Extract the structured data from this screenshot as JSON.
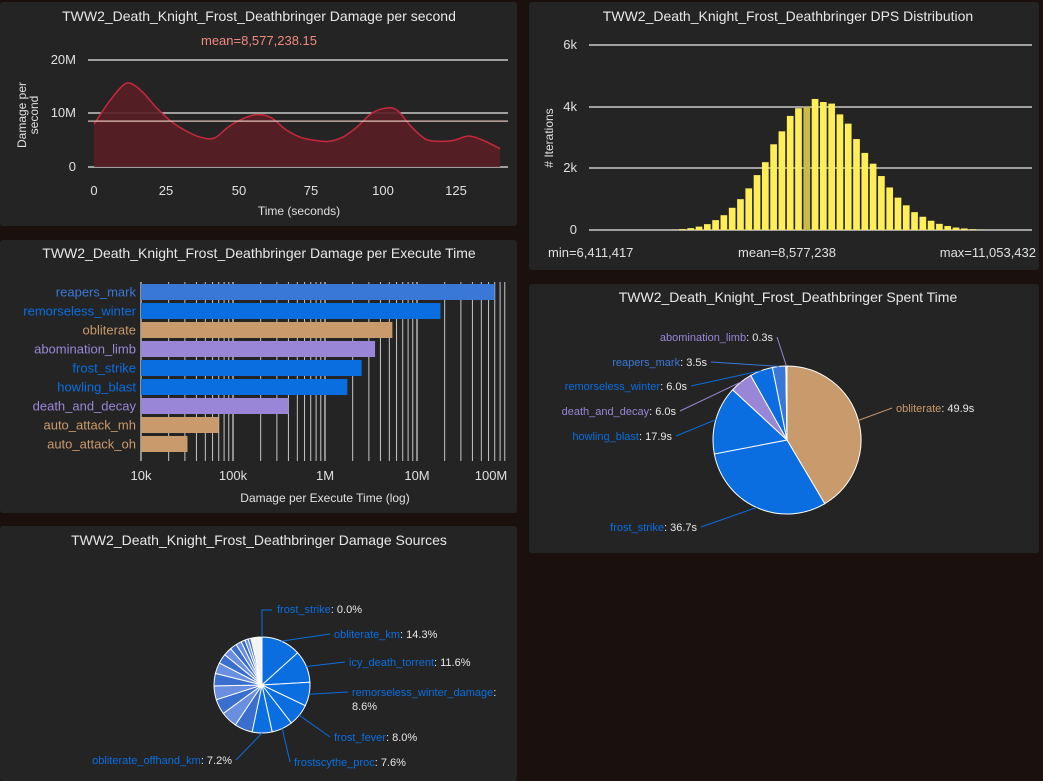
{
  "colors": {
    "panel": "#242424",
    "page_bg": "#1a110e",
    "text": "#e8e8e8",
    "dps_line": "#c8283d",
    "dps_fill": "#5a1e26",
    "mean_text": "#f08a7e",
    "dist_bar": "#ffee58",
    "dist_bar_hi": "#c9bb47",
    "tan": "#c99a6b",
    "blue": "#3a78d8",
    "bright_blue": "#0a6ee0",
    "purple": "#9a86d6"
  },
  "dps_chart": {
    "title": "TWW2_Death_Knight_Frost_Deathbringer Damage per second",
    "mean_label": "mean=8,577,238.15",
    "mean": 8577238.15,
    "xlabel": "Time (seconds)",
    "ylabel": "Damage per second",
    "ylabel_lines": [
      "Damage per",
      "second"
    ],
    "y_ticks": [
      "20M",
      "10M",
      "0"
    ],
    "x_ticks": [
      "0",
      "25",
      "50",
      "75",
      "100",
      "125"
    ],
    "chart_data": {
      "type": "area",
      "title": "TWW2_Death_Knight_Frost_Deathbringer Damage per second",
      "xlabel": "Time (seconds)",
      "ylabel": "Damage per second",
      "xlim": [
        0,
        143
      ],
      "ylim": [
        0,
        20000000
      ],
      "x": [
        0,
        5,
        10,
        13,
        17,
        22,
        27,
        32,
        37,
        42,
        47,
        52,
        57,
        62,
        67,
        72,
        77,
        82,
        87,
        92,
        97,
        102,
        106,
        111,
        116,
        121,
        126,
        131,
        136,
        142
      ],
      "values": [
        8000000,
        12000000,
        15200000,
        15600000,
        14000000,
        11000000,
        8500000,
        6800000,
        5600000,
        5400000,
        7500000,
        9000000,
        9800000,
        9200000,
        7000000,
        5600000,
        5000000,
        4800000,
        5600000,
        7500000,
        10000000,
        11000000,
        10600000,
        7500000,
        5200000,
        4800000,
        5000000,
        5800000,
        5000000,
        3400000
      ]
    }
  },
  "dist_chart": {
    "title": "TWW2_Death_Knight_Frost_Deathbringer DPS Distribution",
    "ylabel": "# Iterations",
    "y_ticks": [
      "6k",
      "4k",
      "2k",
      "0"
    ],
    "min_label": "min=6,411,417",
    "mean_label": "mean=8,577,238",
    "max_label": "max=11,053,432",
    "chart_data": {
      "type": "bar",
      "title": "TWW2_Death_Knight_Frost_Deathbringer DPS Distribution",
      "ylabel": "# Iterations",
      "ylim": [
        0,
        6000
      ],
      "highlight_index": 16,
      "values": [
        10,
        30,
        60,
        110,
        190,
        320,
        480,
        720,
        1000,
        1350,
        1780,
        2200,
        2780,
        3200,
        3700,
        3950,
        4000,
        4250,
        4150,
        4100,
        3750,
        3450,
        2950,
        2500,
        2150,
        1750,
        1380,
        1050,
        800,
        580,
        430,
        300,
        200,
        130,
        80,
        50,
        25,
        10
      ]
    }
  },
  "exec_chart": {
    "title": "TWW2_Death_Knight_Frost_Deathbringer Damage per Execute Time",
    "xlabel": "Damage per Execute Time (log)",
    "x_ticks": [
      "10k",
      "100k",
      "1M",
      "10M",
      "100M"
    ],
    "chart_data": {
      "type": "bar",
      "title": "TWW2_Death_Knight_Frost_Deathbringer Damage per Execute Time",
      "xlabel": "Damage per Execute Time (log)",
      "scale": "log",
      "xlim": [
        10000,
        150000000
      ],
      "categories": [
        "reapers_mark",
        "remorseless_winter",
        "obliterate",
        "abomination_limb",
        "frost_strike",
        "howling_blast",
        "death_and_decay",
        "auto_attack_mh",
        "auto_attack_oh"
      ],
      "values": [
        70000000,
        18000000,
        5400000,
        3500000,
        2500000,
        1750000,
        400000,
        70000,
        32000
      ],
      "colors": [
        "#3a78d8",
        "#0a6ee0",
        "#c99a6b",
        "#9a86d6",
        "#0a6ee0",
        "#0a6ee0",
        "#9a86d6",
        "#c99a6b",
        "#c99a6b"
      ]
    }
  },
  "spent_chart": {
    "title": "TWW2_Death_Knight_Frost_Deathbringer Spent Time",
    "chart_data": {
      "type": "pie",
      "title": "TWW2_Death_Knight_Frost_Deathbringer Spent Time",
      "slices": [
        {
          "name": "obliterate",
          "value": 49.9,
          "label": "49.9s",
          "color": "#c99a6b"
        },
        {
          "name": "frost_strike",
          "value": 36.7,
          "label": "36.7s",
          "color": "#0a6ee0"
        },
        {
          "name": "howling_blast",
          "value": 17.9,
          "label": "17.9s",
          "color": "#0a6ee0"
        },
        {
          "name": "death_and_decay",
          "value": 6.0,
          "label": "6.0s",
          "color": "#9a86d6"
        },
        {
          "name": "remorseless_winter",
          "value": 6.0,
          "label": "6.0s",
          "color": "#0a6ee0"
        },
        {
          "name": "reapers_mark",
          "value": 3.5,
          "label": "3.5s",
          "color": "#3a78d8"
        },
        {
          "name": "abomination_limb",
          "value": 0.3,
          "label": "0.3s",
          "color": "#9a86d6"
        }
      ]
    }
  },
  "sources_chart": {
    "title": "TWW2_Death_Knight_Frost_Deathbringer Damage Sources",
    "chart_data": {
      "type": "pie",
      "title": "TWW2_Death_Knight_Frost_Deathbringer Damage Sources",
      "slices": [
        {
          "name": "frost_strike",
          "value": 0.0,
          "label": "0.0%",
          "color": "#0a6ee0"
        },
        {
          "name": "obliterate_km",
          "value": 14.3,
          "label": "14.3%",
          "color": "#0a6ee0"
        },
        {
          "name": "icy_death_torrent",
          "value": 11.6,
          "label": "11.6%",
          "color": "#0a6ee0"
        },
        {
          "name": "remorseless_winter_damage",
          "value": 8.6,
          "label": "8.6%",
          "color": "#0a6ee0"
        },
        {
          "name": "frost_fever",
          "value": 8.0,
          "label": "8.0%",
          "color": "#0a6ee0"
        },
        {
          "name": "frostscythe_proc",
          "value": 7.6,
          "label": "7.6%",
          "color": "#0a6ee0"
        },
        {
          "name": "obliterate_offhand_km",
          "value": 7.2,
          "label": "7.2%",
          "color": "#0a6ee0"
        }
      ],
      "other_slices": [
        6.5,
        6.0,
        5.5,
        5.0,
        4.5,
        4.0,
        3.5,
        3.0,
        2.5,
        2.0,
        1.5,
        1.2,
        1.0
      ]
    }
  }
}
